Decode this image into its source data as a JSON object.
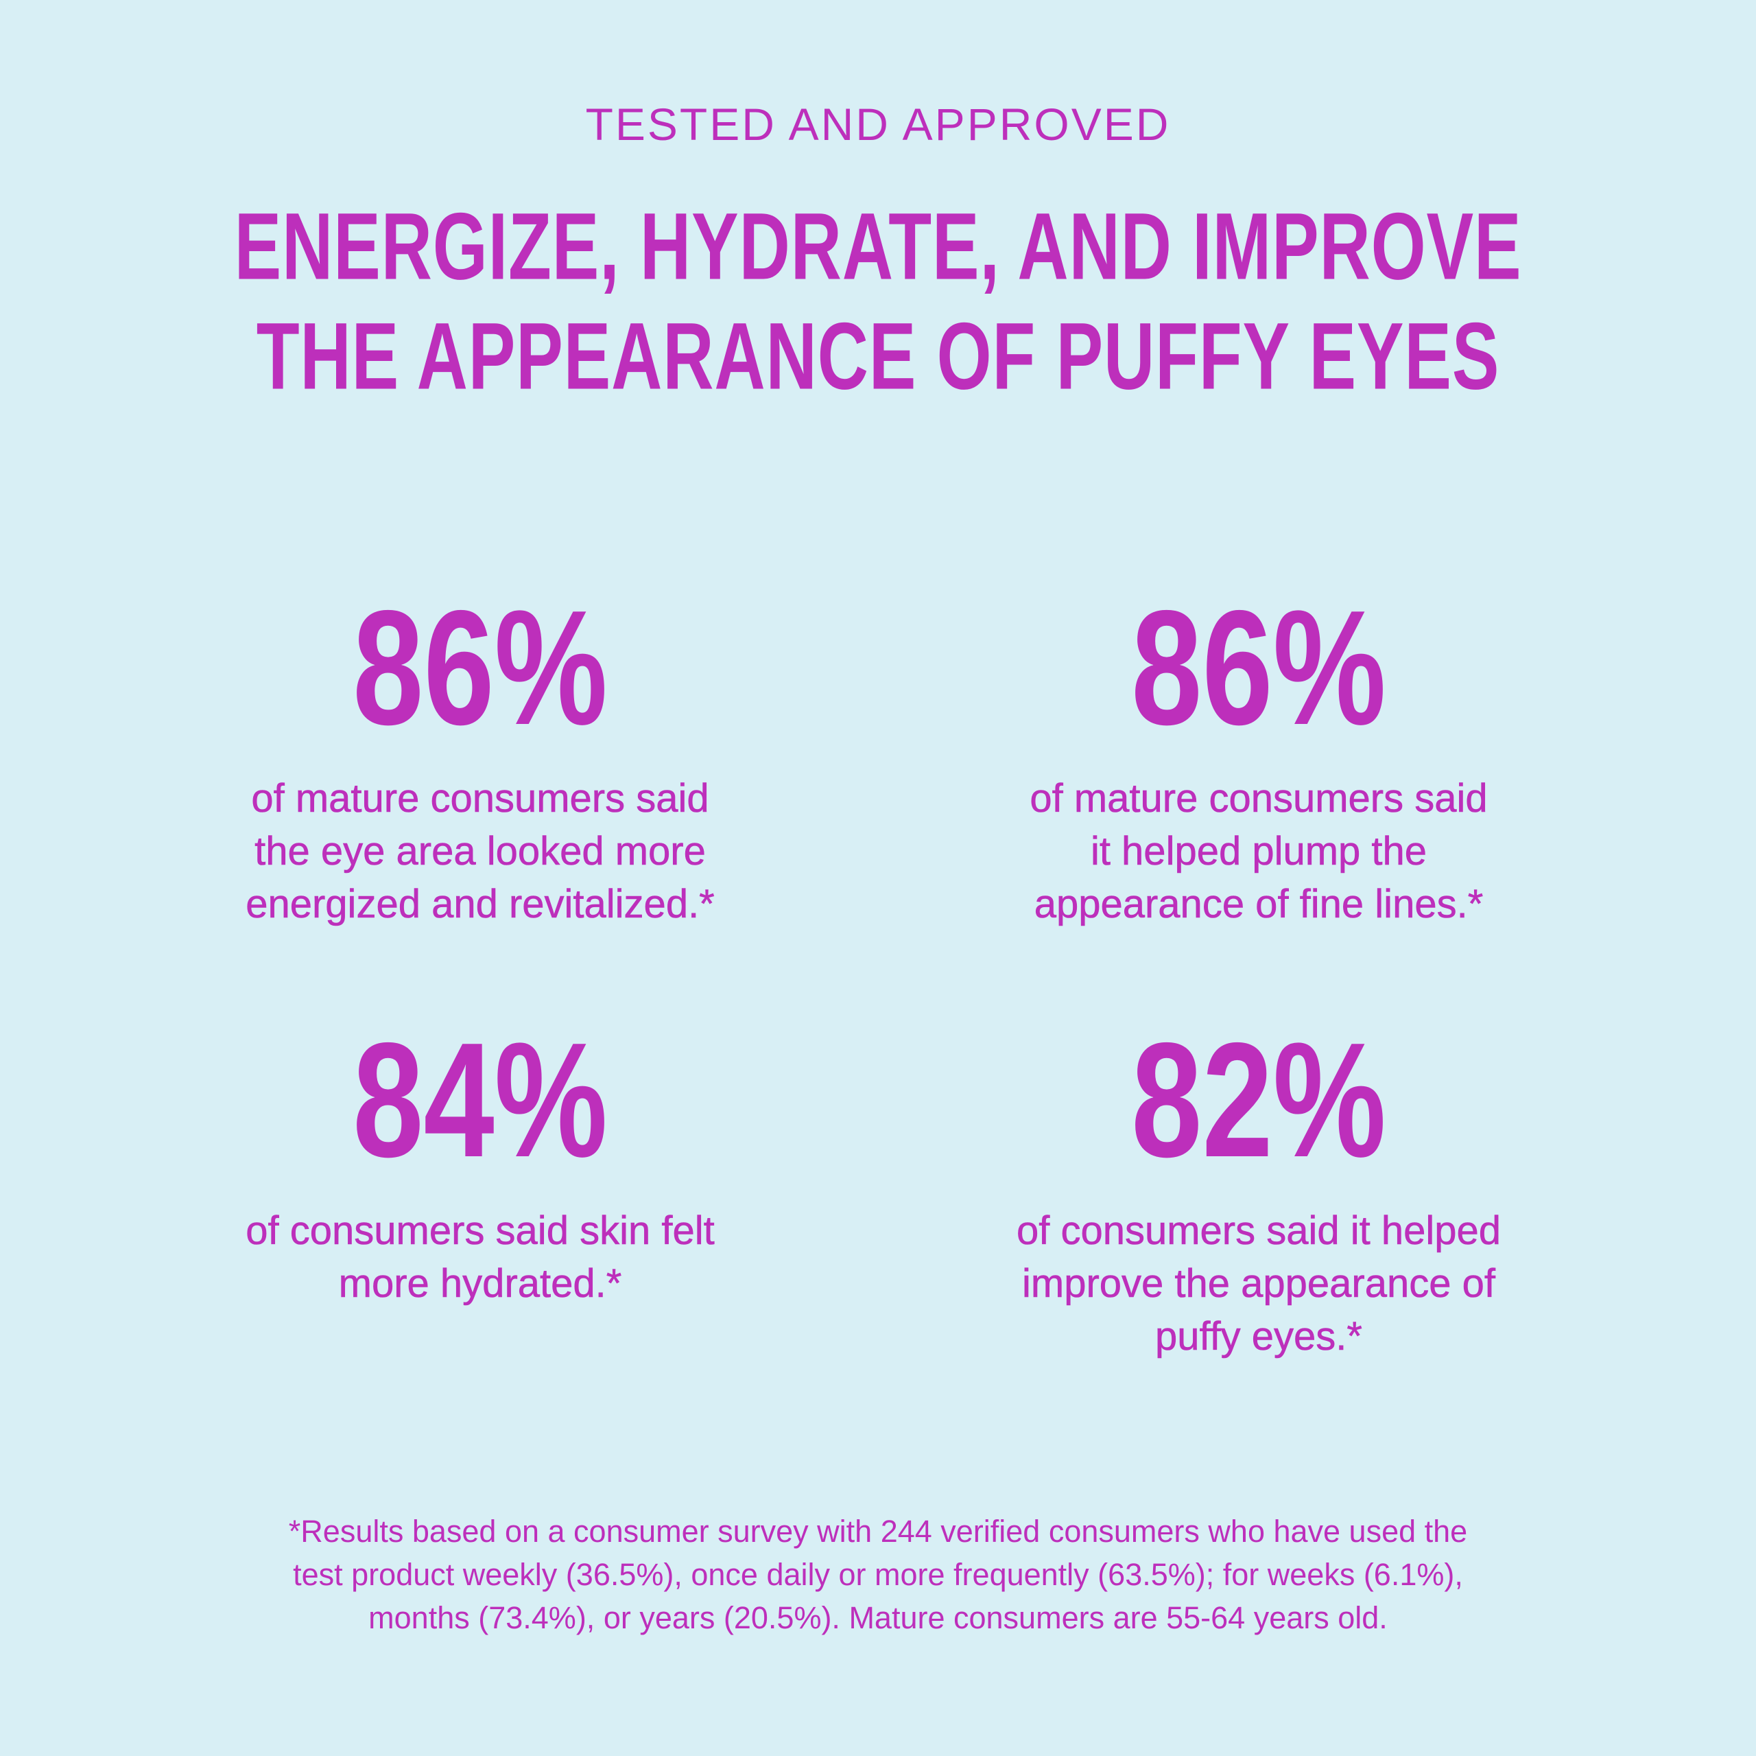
{
  "colors": {
    "background": "#d8eff5",
    "accent": "#bd2fbb"
  },
  "eyebrow": "TESTED AND APPROVED",
  "headline": {
    "lines": [
      "ENERGIZE, HYDRATE, AND IMPROVE",
      "THE APPEARANCE OF PUFFY EYES"
    ]
  },
  "stats": [
    {
      "value": "86%",
      "description_lines": [
        "of mature consumers said",
        "the eye area looked more",
        "energized and revitalized.*"
      ]
    },
    {
      "value": "86%",
      "description_lines": [
        "of mature consumers said",
        "it helped plump the",
        "appearance of fine lines.*"
      ]
    },
    {
      "value": "84%",
      "description_lines": [
        "of consumers said skin felt",
        "more hydrated.*"
      ]
    },
    {
      "value": "82%",
      "description_lines": [
        "of consumers said it helped",
        "improve the appearance of",
        "puffy eyes.*"
      ]
    }
  ],
  "footnote": {
    "lines": [
      "*Results based on a consumer survey with 244 verified consumers who have used the",
      "test product weekly (36.5%), once daily or more frequently (63.5%); for weeks (6.1%),",
      "months (73.4%), or years (20.5%). Mature consumers are 55-64 years old."
    ]
  }
}
